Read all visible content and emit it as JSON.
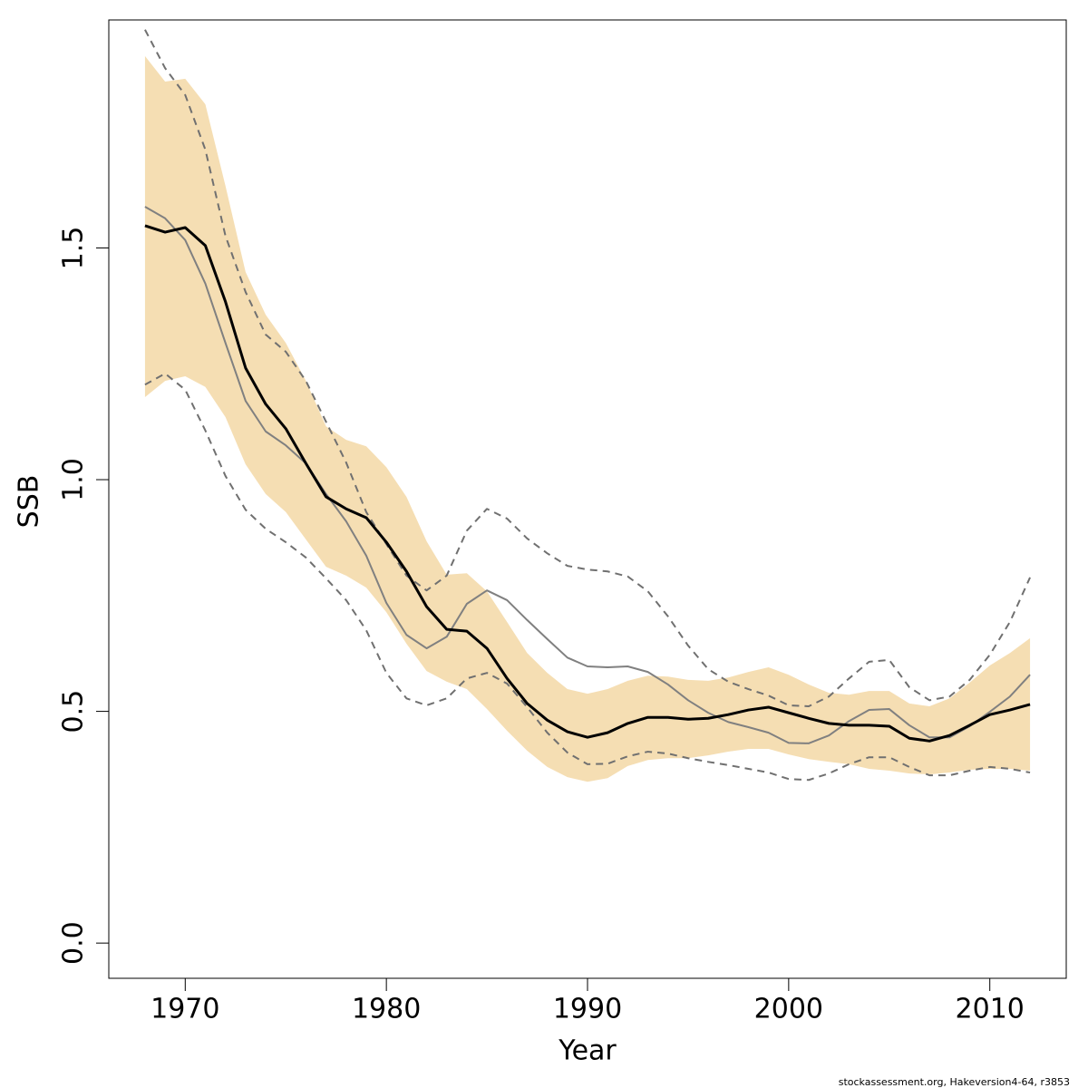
{
  "chart_data": {
    "type": "line",
    "xlabel": "Year",
    "ylabel": "SSB",
    "footnote": "stockassessment.org, Hakeversion4-64, r3853",
    "xlim": [
      1966.2,
      2013.8
    ],
    "ylim": [
      -0.076,
      1.992
    ],
    "xticks": [
      1970,
      1980,
      1990,
      2000,
      2010
    ],
    "yticks": [
      {
        "value": 0,
        "label": "0.0"
      },
      0.5,
      {
        "value": 1,
        "label": "1.0"
      },
      1.5
    ],
    "x": [
      1968,
      1969,
      1970,
      1971,
      1972,
      1973,
      1974,
      1975,
      1976,
      1977,
      1978,
      1979,
      1980,
      1981,
      1982,
      1983,
      1984,
      1985,
      1986,
      1987,
      1988,
      1989,
      1990,
      1991,
      1992,
      1993,
      1994,
      1995,
      1996,
      1997,
      1998,
      1999,
      2000,
      2001,
      2002,
      2003,
      2004,
      2005,
      2006,
      2007,
      2008,
      2009,
      2010,
      2011,
      2012
    ],
    "band": {
      "color": "#f5deb3",
      "upper": [
        1.914,
        1.859,
        1.865,
        1.81,
        1.634,
        1.448,
        1.356,
        1.295,
        1.213,
        1.115,
        1.086,
        1.072,
        1.027,
        0.963,
        0.867,
        0.795,
        0.798,
        0.759,
        0.693,
        0.626,
        0.583,
        0.548,
        0.538,
        0.548,
        0.566,
        0.577,
        0.575,
        0.568,
        0.566,
        0.573,
        0.585,
        0.595,
        0.579,
        0.558,
        0.54,
        0.536,
        0.544,
        0.544,
        0.517,
        0.511,
        0.528,
        0.562,
        0.599,
        0.626,
        0.658
      ],
      "lower": [
        1.178,
        1.213,
        1.223,
        1.2,
        1.135,
        1.033,
        0.969,
        0.93,
        0.871,
        0.812,
        0.793,
        0.767,
        0.714,
        0.646,
        0.587,
        0.564,
        0.548,
        0.505,
        0.458,
        0.415,
        0.38,
        0.358,
        0.348,
        0.356,
        0.382,
        0.395,
        0.399,
        0.399,
        0.405,
        0.413,
        0.419,
        0.419,
        0.407,
        0.397,
        0.391,
        0.386,
        0.376,
        0.372,
        0.366,
        0.364,
        0.368,
        0.374,
        0.376,
        0.376,
        0.372
      ]
    },
    "series": [
      {
        "color": "#707070",
        "linestyle": "dashed",
        "width": 2,
        "values": [
          1.971,
          1.888,
          1.83,
          1.712,
          1.526,
          1.405,
          1.313,
          1.276,
          1.213,
          1.125,
          1.037,
          0.93,
          0.861,
          0.793,
          0.761,
          0.793,
          0.89,
          0.937,
          0.916,
          0.873,
          0.841,
          0.814,
          0.806,
          0.802,
          0.791,
          0.759,
          0.705,
          0.642,
          0.591,
          0.564,
          0.548,
          0.534,
          0.513,
          0.511,
          0.532,
          0.571,
          0.607,
          0.611,
          0.552,
          0.524,
          0.532,
          0.568,
          0.622,
          0.693,
          0.789
        ]
      },
      {
        "color": "#707070",
        "linestyle": "dashed",
        "width": 2,
        "values": [
          1.205,
          1.229,
          1.194,
          1.106,
          1.008,
          0.935,
          0.894,
          0.865,
          0.832,
          0.787,
          0.74,
          0.675,
          0.583,
          0.528,
          0.513,
          0.528,
          0.571,
          0.583,
          0.56,
          0.509,
          0.454,
          0.411,
          0.386,
          0.387,
          0.403,
          0.413,
          0.409,
          0.399,
          0.391,
          0.384,
          0.376,
          0.368,
          0.354,
          0.352,
          0.366,
          0.386,
          0.401,
          0.401,
          0.38,
          0.362,
          0.362,
          0.372,
          0.38,
          0.376,
          0.368
        ]
      },
      {
        "color": "#808080",
        "linestyle": "solid",
        "width": 2,
        "values": [
          1.589,
          1.564,
          1.517,
          1.423,
          1.295,
          1.17,
          1.104,
          1.074,
          1.035,
          0.969,
          0.91,
          0.836,
          0.734,
          0.665,
          0.636,
          0.661,
          0.732,
          0.761,
          0.74,
          0.697,
          0.656,
          0.616,
          0.597,
          0.595,
          0.597,
          0.585,
          0.558,
          0.524,
          0.497,
          0.477,
          0.466,
          0.454,
          0.432,
          0.431,
          0.448,
          0.479,
          0.503,
          0.505,
          0.47,
          0.444,
          0.444,
          0.468,
          0.499,
          0.532,
          0.579
        ]
      },
      {
        "color": "#000000",
        "linestyle": "solid",
        "width": 3,
        "values": [
          1.548,
          1.534,
          1.544,
          1.505,
          1.384,
          1.241,
          1.163,
          1.11,
          1.035,
          0.963,
          0.937,
          0.918,
          0.865,
          0.802,
          0.726,
          0.677,
          0.673,
          0.636,
          0.571,
          0.517,
          0.481,
          0.456,
          0.444,
          0.454,
          0.474,
          0.487,
          0.487,
          0.483,
          0.485,
          0.493,
          0.503,
          0.509,
          0.497,
          0.485,
          0.474,
          0.47,
          0.47,
          0.468,
          0.442,
          0.436,
          0.448,
          0.47,
          0.493,
          0.503,
          0.515
        ]
      }
    ]
  }
}
